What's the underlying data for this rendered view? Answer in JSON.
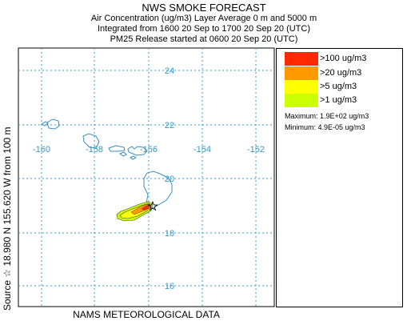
{
  "header": {
    "title": "NWS SMOKE FORECAST",
    "line1": "Air Concentration (ug/m3) Layer Average    0 m and  5000 m",
    "line2": "Integrated from 1600 20 Sep to 1700 20 Sep 20 (UTC)",
    "line3": "PM25 Release started at 0600 20 Sep 20 (UTC)"
  },
  "side_label": "Source ☆  18.980  N 155.620  W        from  100 m",
  "footer": "NAMS METEOROLOGICAL DATA",
  "map": {
    "grid_color": "#3399cc",
    "coast_color": "#3a8fc0",
    "longitude_labels": [
      "-160",
      "-158",
      "-156",
      "-154",
      "-152"
    ],
    "latitude_labels": [
      "24",
      "22",
      "20",
      "18",
      "16"
    ],
    "source": {
      "lat": 18.98,
      "lon": -155.62,
      "marker": "star"
    }
  },
  "legend": {
    "items": [
      {
        "label": ">100 ug/m3",
        "color": "#ff2a00"
      },
      {
        "label": ">20 ug/m3",
        "color": "#ff9900"
      },
      {
        "label": ">5 ug/m3",
        "color": "#ffff00"
      },
      {
        "label": ">1 ug/m3",
        "color": "#ccff00"
      }
    ],
    "maximum": "Maximum: 1.9E+02 ug/m3",
    "minimum": "Minimum: 4.9E-05 ug/m3"
  }
}
